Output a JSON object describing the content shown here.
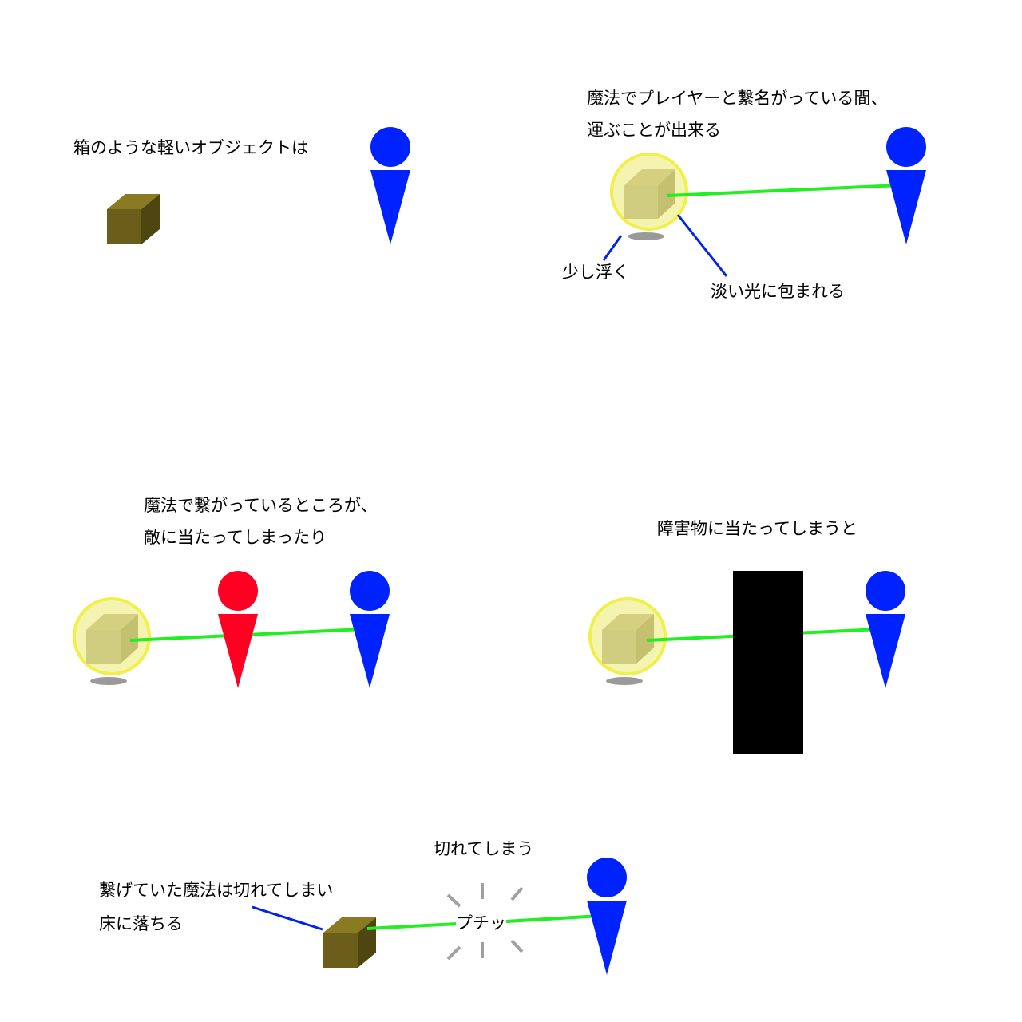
{
  "panel1": {
    "caption": "箱のような軽いオブジェクトは"
  },
  "panel2": {
    "caption_line1": "魔法でプレイヤーと繋名がっている間、",
    "caption_line2": "運ぶことが出来る",
    "callout_float": "少し浮く",
    "callout_glow": "淡い光に包まれる"
  },
  "panel3": {
    "caption_line1": "魔法で繋がっているところが、",
    "caption_line2": "敵に当たってしまったり"
  },
  "panel4": {
    "caption": "障害物に当たってしまうと"
  },
  "panel5": {
    "caption_top": "切れてしまう",
    "callout_line1": "繋げていた魔法は切れてしまい",
    "callout_line2": "床に落ちる",
    "snap_sound": "プチッ"
  },
  "colors": {
    "player": "#0022ff",
    "enemy": "#ff0022",
    "box_front": "#6b5e1a",
    "box_top": "#8a7a24",
    "box_side": "#4f4510",
    "glow_fill": "#f4f4b0",
    "glow_ring": "#f0f04a",
    "tether": "#22ee22",
    "callout_line": "#0022ee",
    "shadow": "#9a9a9a",
    "obstacle": "#000000",
    "snap_marks": "#a0a0a0"
  }
}
